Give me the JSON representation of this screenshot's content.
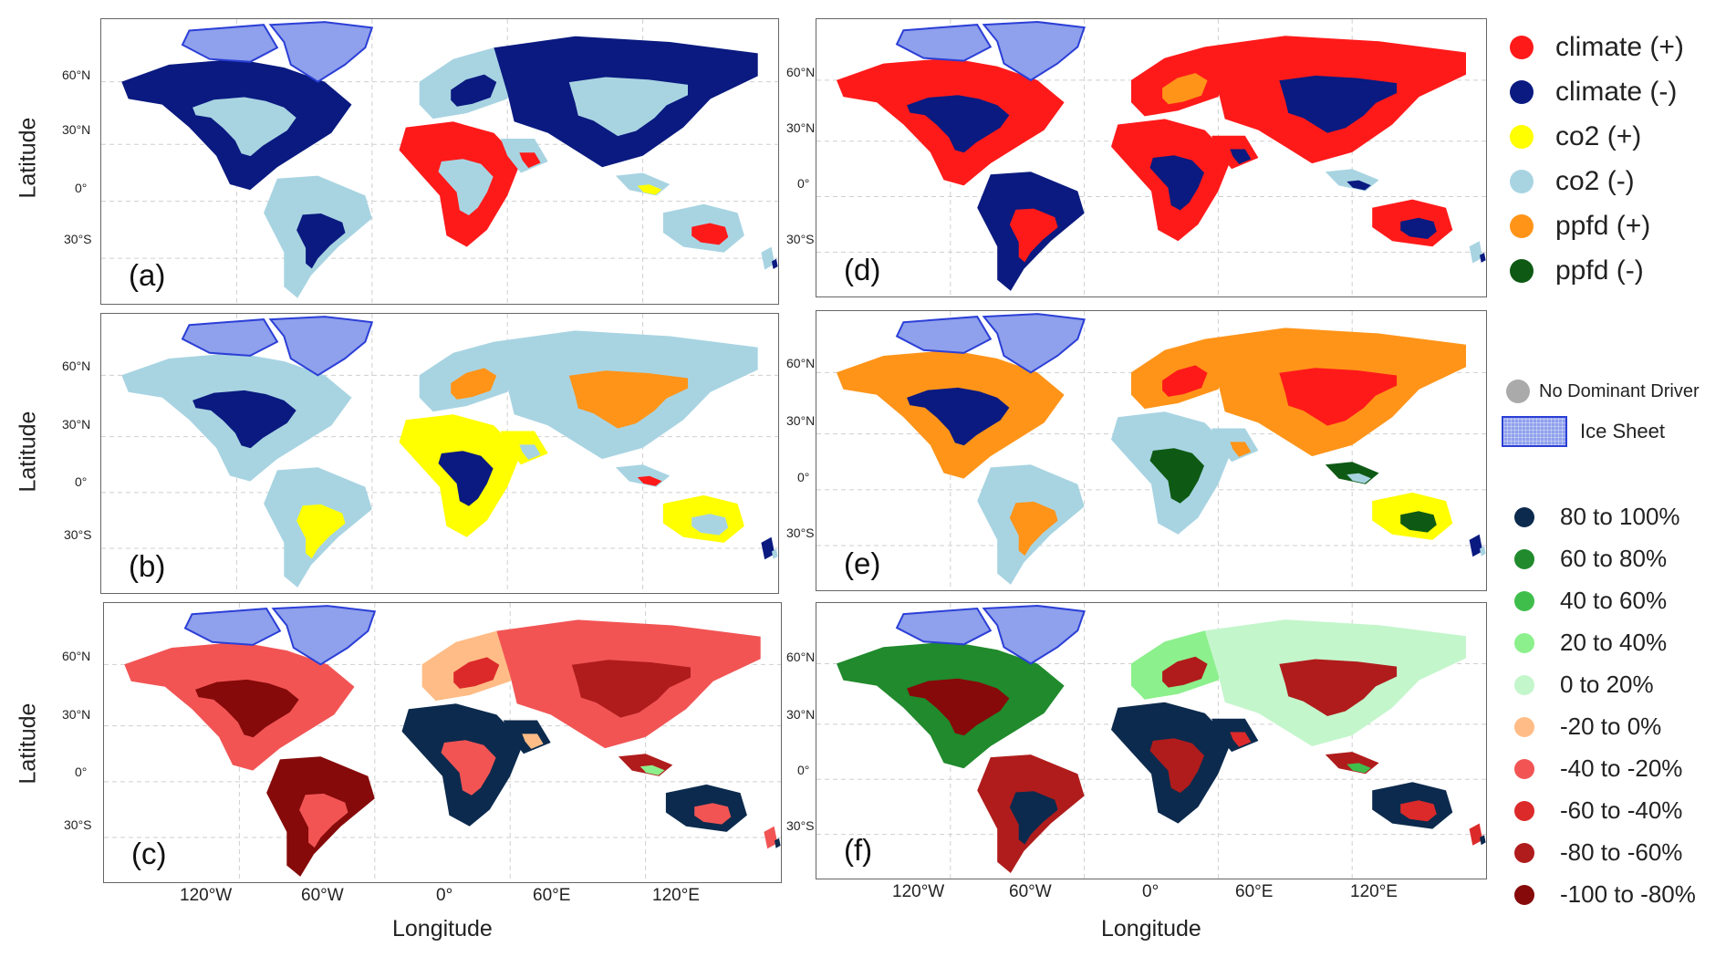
{
  "panels": [
    {
      "id": "a",
      "label": "(a)",
      "palette": "drivers",
      "scheme": 0
    },
    {
      "id": "b",
      "label": "(b)",
      "palette": "drivers",
      "scheme": 1
    },
    {
      "id": "c",
      "label": "(c)",
      "palette": "percent",
      "scheme": 2
    },
    {
      "id": "d",
      "label": "(d)",
      "palette": "drivers",
      "scheme": 3
    },
    {
      "id": "e",
      "label": "(e)",
      "palette": "drivers",
      "scheme": 4
    },
    {
      "id": "f",
      "label": "(f)",
      "palette": "percent",
      "scheme": 5
    }
  ],
  "axes": {
    "y_title": "Latitude",
    "x_title": "Longitude",
    "lat_ticks": [
      "60°N",
      "30°N",
      "0°",
      "30°S"
    ],
    "lon_ticks": [
      "120°W",
      "60°W",
      "0°",
      "60°E",
      "120°E"
    ]
  },
  "legend_drivers": [
    {
      "label": "climate (+)",
      "color": "#ff1a1a"
    },
    {
      "label": "climate (-)",
      "color": "#0a1a80"
    },
    {
      "label": "co2 (+)",
      "color": "#ffff00"
    },
    {
      "label": "co2 (-)",
      "color": "#a8d4e2"
    },
    {
      "label": "ppfd (+)",
      "color": "#ff9419"
    },
    {
      "label": "ppfd (-)",
      "color": "#0e5a14"
    }
  ],
  "legend_misc": {
    "no_driver_label": "No Dominant Driver",
    "no_driver_color": "#aaaaaa",
    "ice_label": "Ice Sheet",
    "ice_color": "#8fa0ec"
  },
  "legend_percent": [
    {
      "label": "80 to 100%",
      "color": "#0c2a4d"
    },
    {
      "label": "60 to 80%",
      "color": "#208a2c"
    },
    {
      "label": "40 to 60%",
      "color": "#40be4c"
    },
    {
      "label": "20 to 40%",
      "color": "#8cf08c"
    },
    {
      "label": "0 to 20%",
      "color": "#c4f6cc"
    },
    {
      "label": "-20 to 0%",
      "color": "#ffbc86"
    },
    {
      "label": "-40 to -20%",
      "color": "#f25454"
    },
    {
      "label": "-60 to -40%",
      "color": "#dc2a2a"
    },
    {
      "label": "-80 to -60%",
      "color": "#b01c1c"
    },
    {
      "label": "-100 to -80%",
      "color": "#860a0a"
    }
  ]
}
